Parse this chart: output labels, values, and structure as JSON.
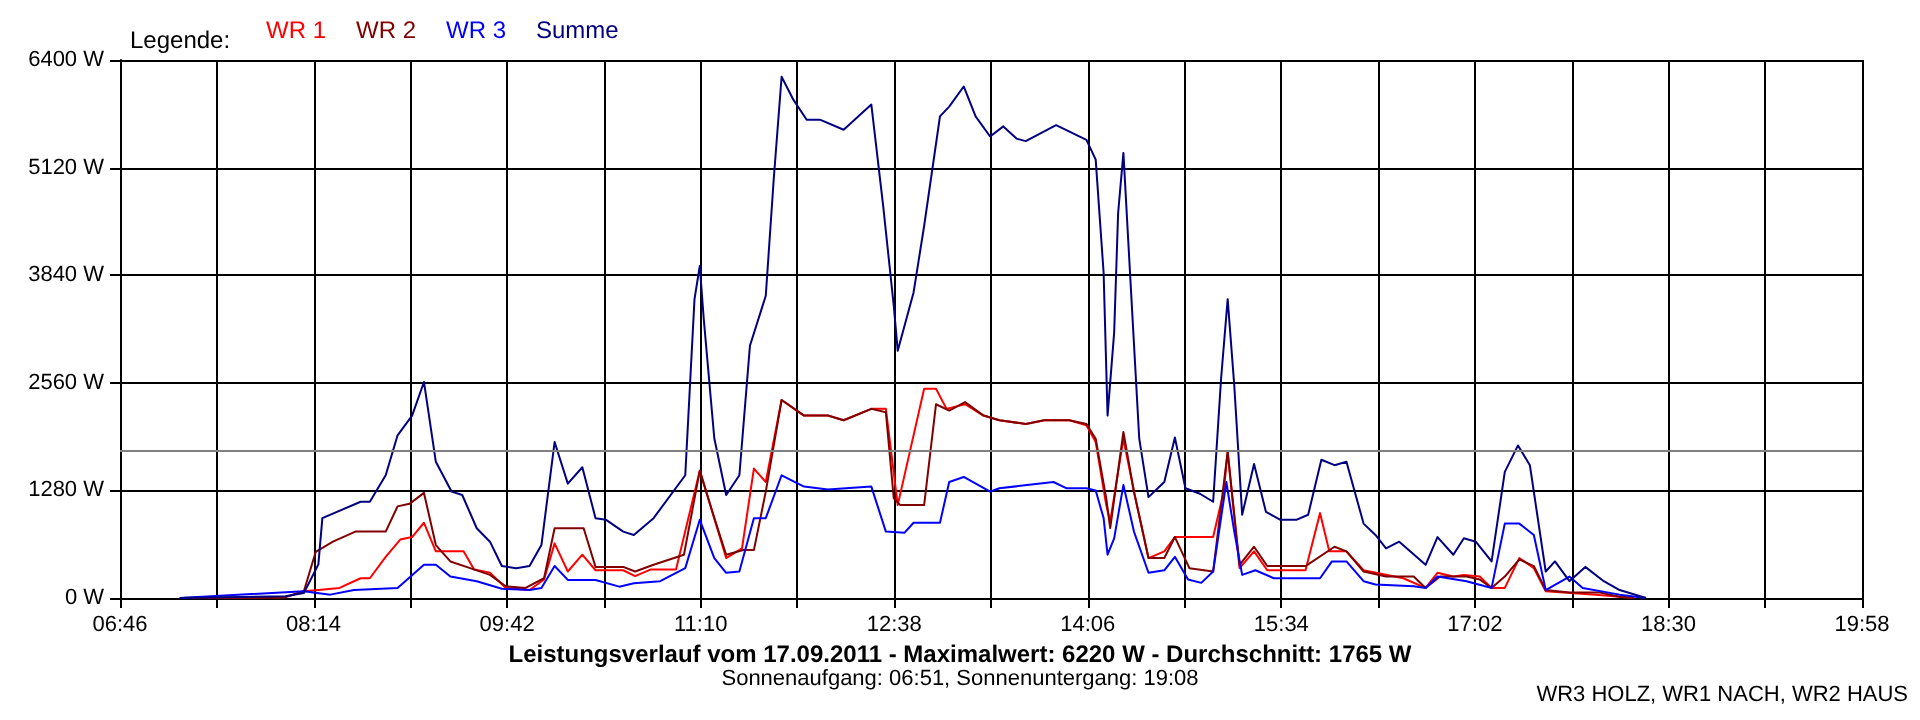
{
  "chart_data": {
    "type": "line",
    "title": "Leistungsverlauf vom 17.09.2011 - Maximalwert: 6220 W - Durchschnitt: 1765 W",
    "subtitle": "Sonnenaufgang: 06:51, Sonnenuntergang: 19:08",
    "legend_title": "Legende:",
    "annotations": [
      "WR3 HOLZ, WR1 NACH, WR2 HAUS"
    ],
    "legend": "top left",
    "grid": true,
    "marker": "none",
    "line_style": "solid",
    "xlim": [
      6.7667,
      19.9667
    ],
    "ylim": [
      0,
      6400
    ],
    "xticks": [
      {
        "value": 6.7667,
        "label": "06:46"
      },
      {
        "value": 7.5,
        "label": null
      },
      {
        "value": 8.2333,
        "label": "08:14"
      },
      {
        "value": 8.9667,
        "label": null
      },
      {
        "value": 9.7,
        "label": "09:42"
      },
      {
        "value": 10.4333,
        "label": null
      },
      {
        "value": 11.1667,
        "label": "11:10"
      },
      {
        "value": 11.9,
        "label": null
      },
      {
        "value": 12.6333,
        "label": "12:38"
      },
      {
        "value": 13.3667,
        "label": null
      },
      {
        "value": 14.1,
        "label": "14:06"
      },
      {
        "value": 14.8333,
        "label": null
      },
      {
        "value": 15.5667,
        "label": "15:34"
      },
      {
        "value": 16.3,
        "label": null
      },
      {
        "value": 17.0333,
        "label": "17:02"
      },
      {
        "value": 17.7667,
        "label": null
      },
      {
        "value": 18.5,
        "label": "18:30"
      },
      {
        "value": 19.2333,
        "label": null
      },
      {
        "value": 19.9667,
        "label": "19:58"
      }
    ],
    "yticks": [
      {
        "value": 0,
        "label": "0 W"
      },
      {
        "value": 1280,
        "label": "1280 W"
      },
      {
        "value": 2560,
        "label": "2560 W"
      },
      {
        "value": 3840,
        "label": "3840 W"
      },
      {
        "value": 5120,
        "label": "5120 W"
      },
      {
        "value": 6400,
        "label": "6400 W"
      }
    ],
    "ref_lines": [
      {
        "axis": "y",
        "value": 1765,
        "color": "#808080"
      }
    ],
    "series": [
      {
        "name": "WR 1",
        "color": "#ff0000",
        "x": [
          7.22,
          8.02,
          8.16,
          8.27,
          8.43,
          8.59,
          8.66,
          8.78,
          8.89,
          8.98,
          9.07,
          9.16,
          9.37,
          9.45,
          9.57,
          9.69,
          9.87,
          9.98,
          10.06,
          10.16,
          10.27,
          10.37,
          10.58,
          10.67,
          10.79,
          10.98,
          11.16,
          11.27,
          11.36,
          11.48,
          11.57,
          11.66,
          11.78,
          11.95,
          12.13,
          12.25,
          12.46,
          12.57,
          12.66,
          12.86,
          12.95,
          13.03,
          13.17,
          13.31,
          13.43,
          13.63,
          13.77,
          13.96,
          14.09,
          14.16,
          14.24,
          14.27,
          14.37,
          14.45,
          14.56,
          14.68,
          14.76,
          15.05,
          15.13,
          15.16,
          15.25,
          15.36,
          15.46,
          15.75,
          15.86,
          15.93,
          16.06,
          16.19,
          16.49,
          16.66,
          16.75,
          16.87,
          16.95,
          17.07,
          17.16,
          17.26,
          17.37,
          17.48,
          17.57,
          17.95,
          18.24
        ],
        "values": [
          0,
          10,
          80,
          95,
          120,
          235,
          235,
          490,
          695,
          725,
          895,
          555,
          555,
          340,
          300,
          120,
          95,
          220,
          650,
          315,
          515,
          330,
          330,
          260,
          340,
          340,
          1515,
          950,
          475,
          590,
          1540,
          1380,
          2355,
          2170,
          2170,
          2115,
          2250,
          2250,
          1105,
          2490,
          2490,
          2250,
          2305,
          2170,
          2115,
          2070,
          2115,
          2115,
          2055,
          1855,
          1105,
          910,
          1895,
          1265,
          475,
          555,
          725,
          725,
          1265,
          1740,
          355,
          555,
          330,
          330,
          1010,
          555,
          555,
          330,
          235,
          120,
          300,
          255,
          275,
          255,
          120,
          120,
          475,
          355,
          80,
          40,
          0
        ]
      },
      {
        "name": "WR 2",
        "color": "#800000",
        "x": [
          7.22,
          8.02,
          8.16,
          8.25,
          8.38,
          8.55,
          8.78,
          8.87,
          8.96,
          9.07,
          9.16,
          9.27,
          9.42,
          9.57,
          9.69,
          9.84,
          9.98,
          10.06,
          10.28,
          10.37,
          10.58,
          10.67,
          10.81,
          11.04,
          11.16,
          11.27,
          11.36,
          11.49,
          11.57,
          11.66,
          11.78,
          11.95,
          12.13,
          12.25,
          12.46,
          12.57,
          12.63,
          12.68,
          12.86,
          12.95,
          13.05,
          13.17,
          13.31,
          13.43,
          13.63,
          13.77,
          13.96,
          14.09,
          14.16,
          14.24,
          14.27,
          14.37,
          14.45,
          14.56,
          14.68,
          14.76,
          14.87,
          15.05,
          15.16,
          15.25,
          15.36,
          15.46,
          15.75,
          15.97,
          16.06,
          16.19,
          16.36,
          16.57,
          16.66,
          16.77,
          16.97,
          17.07,
          17.16,
          17.26,
          17.37,
          17.48,
          17.57,
          17.75,
          17.98,
          18.13,
          18.24
        ],
        "values": [
          0,
          10,
          80,
          550,
          670,
          790,
          790,
          1090,
          1120,
          1250,
          630,
          435,
          355,
          275,
          140,
          120,
          235,
          830,
          830,
          370,
          370,
          315,
          395,
          515,
          1515,
          950,
          515,
          570,
          570,
          1265,
          2355,
          2170,
          2170,
          2115,
          2250,
          2210,
          1185,
          1105,
          1105,
          2305,
          2230,
          2330,
          2170,
          2115,
          2070,
          2115,
          2115,
          2070,
          1895,
          1185,
          830,
          1975,
          1265,
          475,
          475,
          725,
          355,
          315,
          1740,
          395,
          610,
          380,
          380,
          610,
          555,
          315,
          255,
          255,
          120,
          255,
          255,
          220,
          120,
          255,
          460,
          380,
          95,
          65,
          65,
          15,
          0
        ]
      },
      {
        "name": "WR 3",
        "color": "#0000ff",
        "x": [
          7.22,
          8.16,
          8.36,
          8.54,
          8.87,
          9.07,
          9.16,
          9.27,
          9.47,
          9.66,
          9.87,
          9.96,
          10.06,
          10.16,
          10.37,
          10.55,
          10.66,
          10.86,
          11.05,
          11.16,
          11.27,
          11.36,
          11.46,
          11.57,
          11.66,
          11.78,
          11.95,
          12.13,
          12.46,
          12.57,
          12.71,
          12.78,
          12.98,
          13.05,
          13.16,
          13.36,
          13.43,
          13.84,
          13.94,
          14.09,
          14.16,
          14.22,
          14.25,
          14.3,
          14.37,
          14.45,
          14.56,
          14.68,
          14.76,
          14.86,
          14.96,
          15.05,
          15.15,
          15.21,
          15.27,
          15.37,
          15.51,
          15.86,
          15.95,
          16.06,
          16.19,
          16.28,
          16.57,
          16.66,
          16.75,
          16.97,
          17.16,
          17.26,
          17.37,
          17.48,
          17.57,
          17.75,
          17.85,
          18.13,
          18.33
        ],
        "values": [
          0,
          80,
          40,
          95,
          120,
          395,
          395,
          255,
          200,
          110,
          95,
          120,
          380,
          215,
          215,
          135,
          175,
          200,
          355,
          930,
          475,
          300,
          315,
          950,
          950,
          1460,
          1325,
          1290,
          1325,
          790,
          775,
          895,
          895,
          1380,
          1440,
          1265,
          1305,
          1380,
          1305,
          1305,
          1280,
          950,
          515,
          710,
          1345,
          790,
          300,
          330,
          490,
          220,
          180,
          315,
          1380,
          790,
          275,
          330,
          235,
          235,
          435,
          435,
          200,
          160,
          140,
          120,
          255,
          200,
          120,
          885,
          885,
          750,
          95,
          255,
          120,
          40,
          0
        ]
      },
      {
        "name": "Summe",
        "color": "#000080",
        "x": [
          7.22,
          8.02,
          8.16,
          8.27,
          8.3,
          8.59,
          8.66,
          8.78,
          8.87,
          8.98,
          9.07,
          9.16,
          9.28,
          9.36,
          9.47,
          9.57,
          9.66,
          9.77,
          9.87,
          9.96,
          10.06,
          10.16,
          10.27,
          10.37,
          10.45,
          10.58,
          10.66,
          10.81,
          11.05,
          11.12,
          11.16,
          11.19,
          11.27,
          11.36,
          11.46,
          11.54,
          11.66,
          11.72,
          11.78,
          11.87,
          11.97,
          12.07,
          12.25,
          12.46,
          12.55,
          12.63,
          12.66,
          12.78,
          12.86,
          12.98,
          13.05,
          13.16,
          13.25,
          13.36,
          13.46,
          13.56,
          13.63,
          13.86,
          14.09,
          14.16,
          14.22,
          14.25,
          14.3,
          14.33,
          14.37,
          14.42,
          14.49,
          14.56,
          14.68,
          14.76,
          14.84,
          14.95,
          15.05,
          15.11,
          15.16,
          15.21,
          15.27,
          15.36,
          15.45,
          15.56,
          15.68,
          15.77,
          15.87,
          15.97,
          16.06,
          16.19,
          16.28,
          16.36,
          16.46,
          16.66,
          16.75,
          16.87,
          16.95,
          17.04,
          17.16,
          17.26,
          17.36,
          17.45,
          17.57,
          17.64,
          17.75,
          17.87,
          18.01,
          18.13,
          18.33
        ],
        "values": [
          0,
          20,
          60,
          400,
          950,
          1145,
          1145,
          1460,
          1935,
          2170,
          2570,
          1620,
          1265,
          1225,
          830,
          670,
          380,
          355,
          380,
          630,
          1855,
          1360,
          1555,
          950,
          930,
          790,
          750,
          950,
          1460,
          3555,
          3950,
          3320,
          1900,
          1225,
          1460,
          3000,
          3595,
          4975,
          6200,
          5925,
          5690,
          5690,
          5570,
          5870,
          4660,
          3475,
          2940,
          3635,
          4425,
          5730,
          5845,
          6085,
          5730,
          5490,
          5610,
          5465,
          5435,
          5625,
          5450,
          5215,
          3870,
          2170,
          3160,
          4580,
          5295,
          3870,
          1895,
          1200,
          1380,
          1910,
          1305,
          1240,
          1145,
          2605,
          3555,
          2530,
          990,
          1595,
          1025,
          930,
          930,
          990,
          1645,
          1580,
          1620,
          885,
          750,
          590,
          670,
          395,
          725,
          515,
          710,
          670,
          435,
          1500,
          1815,
          1580,
          315,
          435,
          200,
          370,
          200,
          95,
          0
        ]
      }
    ]
  }
}
